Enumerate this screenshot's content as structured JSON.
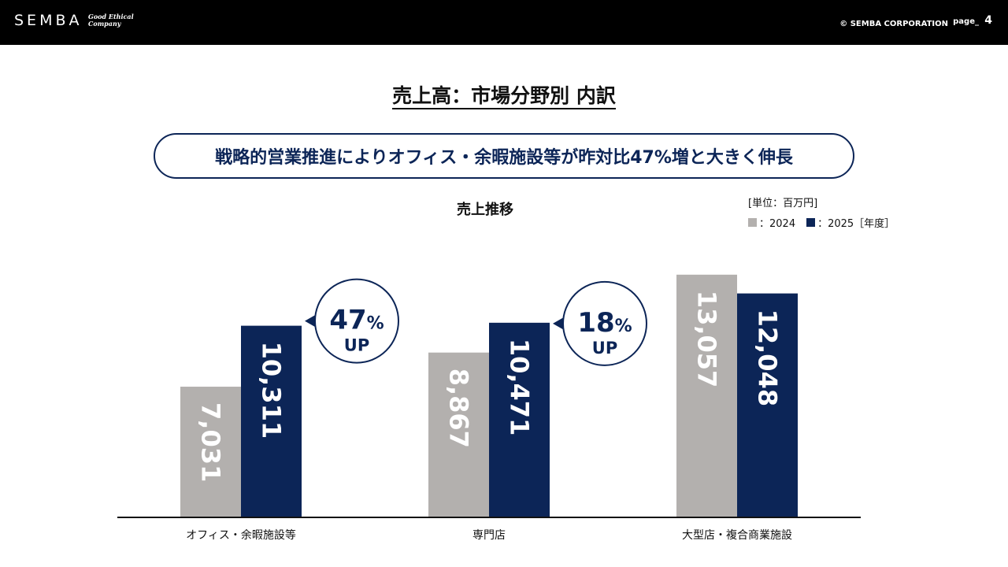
{
  "header": {
    "logo": "SEMBA",
    "tagline_line1": "Good Ethical",
    "tagline_line2": "Company",
    "copyright": "© SEMBA CORPORATION",
    "page_label": "page_",
    "page_number": "4"
  },
  "title": "売上高：市場分野別 内訳",
  "banner": "戦略的営業推進によりオフィス・余暇施設等が昨対比47%増と大きく伸長",
  "chart_data": {
    "type": "bar",
    "title": "売上推移",
    "unit": "[単位：百万円]",
    "categories": [
      "オフィス・余暇施設等",
      "専門店",
      "大型店・複合商業施設"
    ],
    "series": [
      {
        "name": "2024",
        "legend_label": "：2024",
        "color": "#b3b0ae",
        "values": [
          7031,
          8867,
          13057
        ],
        "labels": [
          "7,031",
          "8,867",
          "13,057"
        ]
      },
      {
        "name": "2025",
        "legend_label": "：2025［年度］",
        "color": "#0c2557",
        "values": [
          10311,
          10471,
          12048
        ],
        "labels": [
          "10,311",
          "10,471",
          "12,048"
        ]
      }
    ],
    "ylim": [
      0,
      14150
    ],
    "annotations": [
      {
        "category_index": 0,
        "pct": "47",
        "pct_sign": "%",
        "up": "UP"
      },
      {
        "category_index": 1,
        "pct": "18",
        "pct_sign": "%",
        "up": "UP"
      }
    ]
  }
}
